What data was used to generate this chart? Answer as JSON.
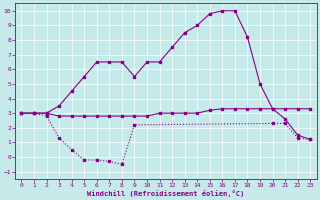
{
  "xlabel": "Windchill (Refroidissement éolien,°C)",
  "background_color": "#c6e9e9",
  "line_color": "#880088",
  "x": [
    0,
    1,
    2,
    3,
    4,
    5,
    6,
    7,
    8,
    9,
    10,
    11,
    12,
    13,
    14,
    15,
    16,
    17,
    18,
    19,
    20,
    21,
    22,
    23
  ],
  "y_main": [
    3,
    3,
    3,
    3.5,
    4.5,
    5.5,
    6.5,
    6.5,
    6.5,
    5.5,
    6.5,
    6.5,
    7.5,
    8.5,
    9.0,
    9.8,
    10,
    10,
    8.2,
    5.0,
    3.3,
    2.6,
    1.5,
    1.2
  ],
  "y_flat": [
    3,
    3,
    3,
    2.8,
    2.8,
    2.8,
    2.8,
    2.8,
    2.8,
    2.8,
    2.8,
    3.0,
    3.0,
    3.0,
    3.0,
    3.2,
    3.3,
    3.3,
    3.3,
    3.3,
    3.3,
    3.3,
    3.3,
    3.3
  ],
  "y_low_x": [
    0,
    1,
    2,
    3,
    4,
    5,
    6,
    7,
    8,
    9,
    20,
    21,
    22,
    23
  ],
  "y_low_y": [
    3,
    3,
    2.8,
    1.3,
    0.5,
    -0.2,
    -0.2,
    -0.3,
    -0.5,
    2.2,
    2.3,
    2.3,
    1.3,
    1.2
  ],
  "ylim": [
    -1.5,
    10.5
  ],
  "xlim": [
    -0.5,
    23.5
  ],
  "yticks": [
    -1,
    0,
    1,
    2,
    3,
    4,
    5,
    6,
    7,
    8,
    9,
    10
  ],
  "xticks": [
    0,
    1,
    2,
    3,
    4,
    5,
    6,
    7,
    8,
    9,
    10,
    11,
    12,
    13,
    14,
    15,
    16,
    17,
    18,
    19,
    20,
    21,
    22,
    23
  ],
  "figsize": [
    3.2,
    2.0
  ],
  "dpi": 100
}
